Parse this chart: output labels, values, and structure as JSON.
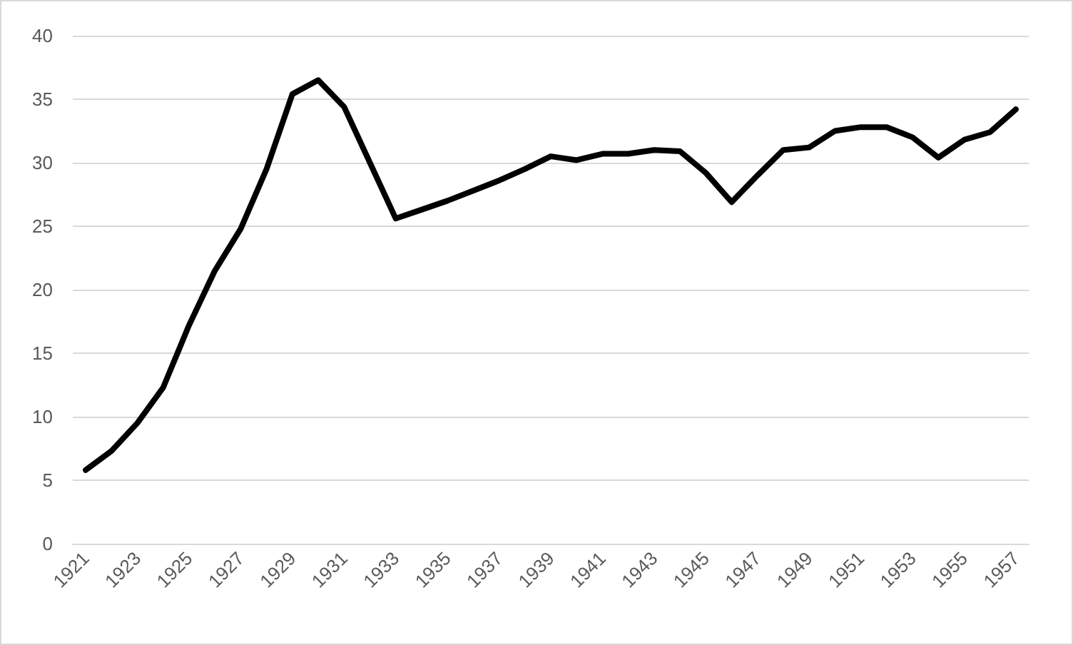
{
  "chart_data": {
    "type": "line",
    "categories": [
      "1921",
      null,
      "1923",
      null,
      "1925",
      null,
      "1927",
      null,
      "1929",
      null,
      "1931",
      null,
      "1933",
      null,
      "1935",
      null,
      "1937",
      null,
      "1939",
      null,
      "1941",
      null,
      "1943",
      null,
      "1945",
      null,
      "1947",
      null,
      "1949",
      null,
      "1951",
      null,
      "1953",
      null,
      "1955",
      null,
      "1957"
    ],
    "values": [
      5.8,
      7.3,
      9.5,
      12.3,
      17.2,
      21.5,
      24.8,
      29.5,
      35.4,
      36.5,
      34.4,
      30.0,
      25.6,
      26.3,
      27.0,
      27.8,
      28.6,
      29.5,
      30.5,
      30.2,
      30.7,
      30.7,
      31.0,
      30.9,
      29.2,
      26.9,
      29.0,
      31.0,
      31.2,
      32.5,
      32.8,
      32.8,
      32.0,
      30.4,
      31.8,
      32.4,
      34.2
    ],
    "color": "#000000",
    "ylim": [
      0,
      40
    ],
    "yticks": [
      0,
      5,
      10,
      15,
      20,
      25,
      30,
      35,
      40
    ],
    "grid": "y"
  }
}
